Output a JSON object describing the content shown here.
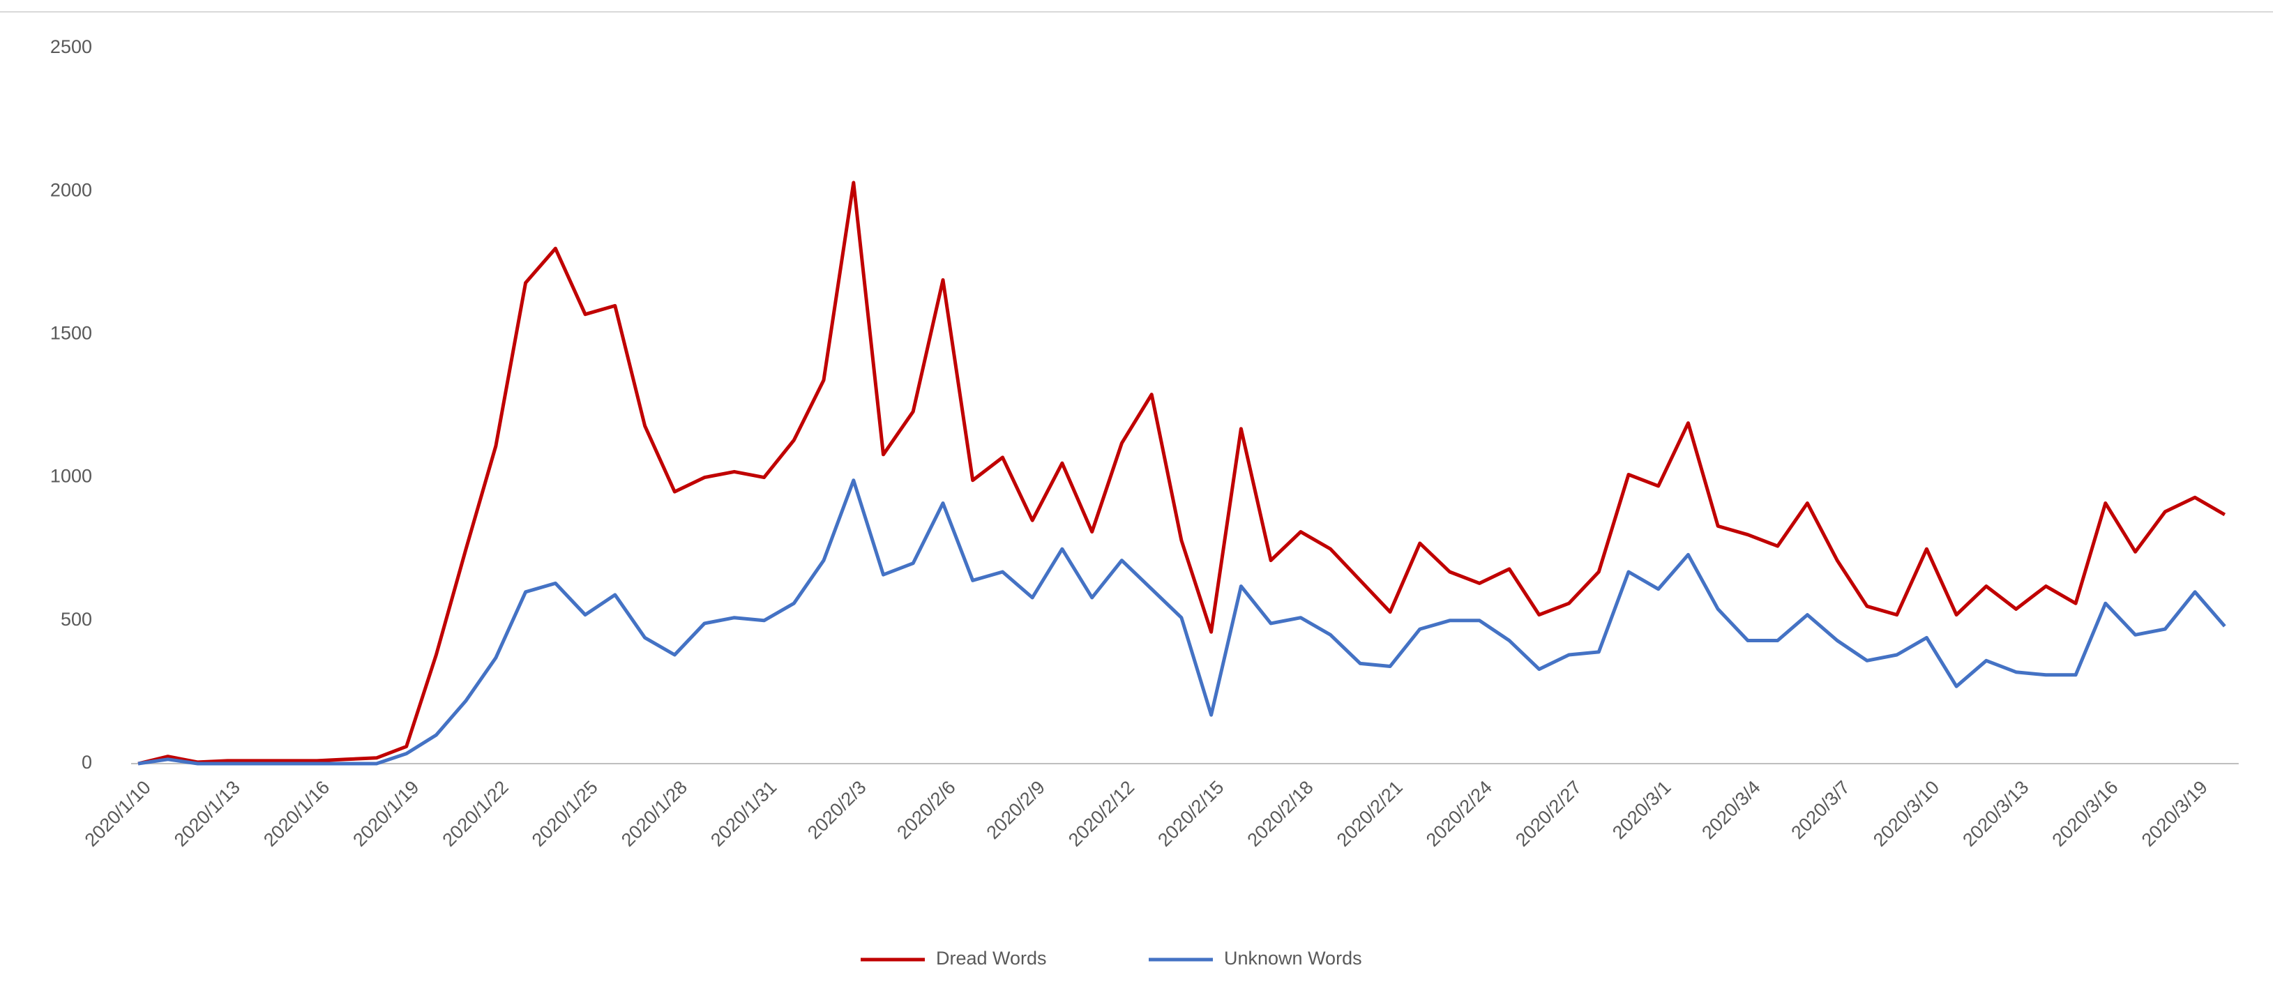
{
  "chart_data": {
    "type": "line",
    "categories": [
      "2020/1/10",
      null,
      null,
      "2020/1/13",
      null,
      null,
      "2020/1/16",
      null,
      null,
      "2020/1/19",
      null,
      null,
      "2020/1/22",
      null,
      null,
      "2020/1/25",
      null,
      null,
      "2020/1/28",
      null,
      null,
      "2020/1/31",
      null,
      null,
      "2020/2/3",
      null,
      null,
      "2020/2/6",
      null,
      null,
      "2020/2/9",
      null,
      null,
      "2020/2/12",
      null,
      null,
      "2020/2/15",
      null,
      null,
      "2020/2/18",
      null,
      null,
      "2020/2/21",
      null,
      null,
      "2020/2/24",
      null,
      null,
      "2020/2/27",
      null,
      null,
      "2020/3/1",
      null,
      null,
      "2020/3/4",
      null,
      null,
      "2020/3/7",
      null,
      null,
      "2020/3/10",
      null,
      null,
      "2020/3/13",
      null,
      null,
      "2020/3/16",
      null,
      null,
      "2020/3/19",
      null
    ],
    "series": [
      {
        "name": "Dread Words",
        "color": "#c00000",
        "values": [
          0,
          25,
          5,
          10,
          10,
          10,
          10,
          15,
          20,
          60,
          380,
          750,
          1110,
          1680,
          1800,
          1570,
          1600,
          1180,
          950,
          1000,
          1020,
          1000,
          1130,
          1340,
          2030,
          1080,
          1230,
          1690,
          990,
          1070,
          850,
          1050,
          810,
          1120,
          1290,
          780,
          460,
          1170,
          710,
          810,
          750,
          640,
          530,
          770,
          670,
          630,
          680,
          520,
          560,
          670,
          1010,
          970,
          1190,
          830,
          800,
          760,
          910,
          710,
          550,
          520,
          750,
          520,
          620,
          540,
          620,
          560,
          910,
          740,
          880,
          930,
          870
        ]
      },
      {
        "name": "Unknown Words",
        "color": "#4472c4",
        "values": [
          0,
          15,
          0,
          0,
          0,
          0,
          0,
          0,
          0,
          35,
          100,
          220,
          370,
          600,
          630,
          520,
          590,
          440,
          380,
          490,
          510,
          500,
          560,
          710,
          990,
          660,
          700,
          910,
          640,
          670,
          580,
          750,
          580,
          710,
          610,
          510,
          170,
          620,
          490,
          510,
          450,
          350,
          340,
          470,
          500,
          500,
          430,
          330,
          380,
          390,
          670,
          610,
          730,
          540,
          430,
          430,
          520,
          430,
          360,
          380,
          440,
          270,
          360,
          320,
          310,
          310,
          560,
          450,
          470,
          600,
          480
        ]
      }
    ],
    "ylim": [
      0,
      2500
    ],
    "yticks": [
      0,
      500,
      1000,
      1500,
      2000,
      2500
    ],
    "grid": false,
    "legend": "bottom"
  }
}
